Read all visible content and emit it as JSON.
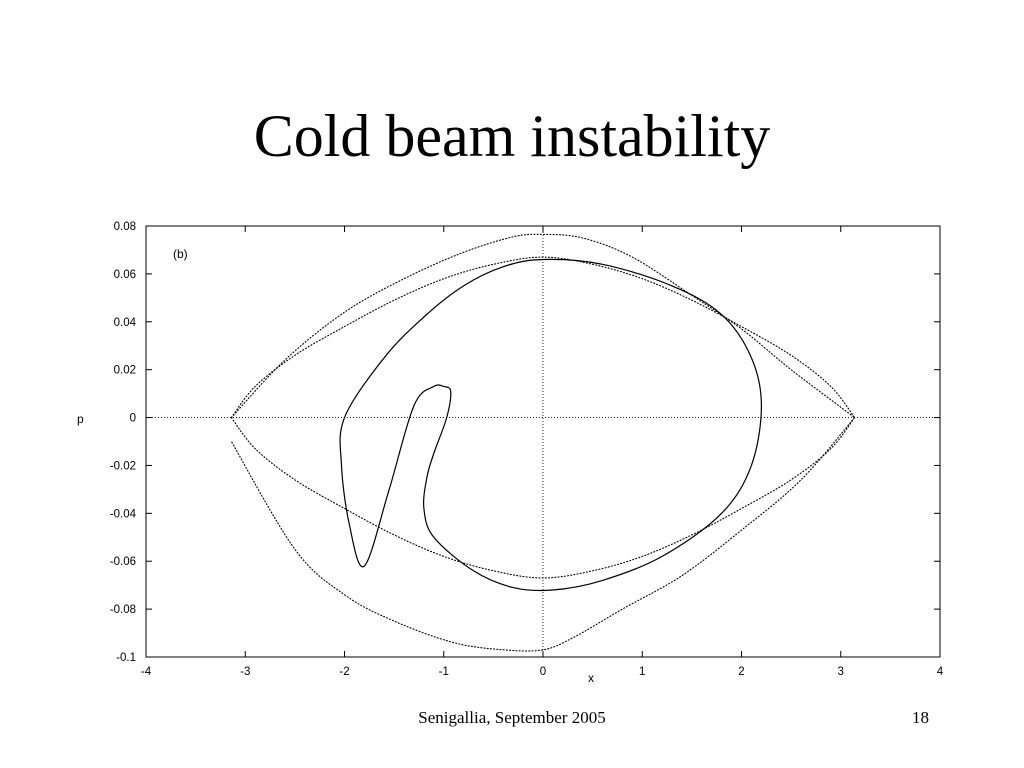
{
  "slide": {
    "title": "Cold beam instability",
    "footer_center": "Senigallia, September 2005",
    "page_number": "18"
  },
  "chart_data": {
    "type": "line",
    "annotation": "(b)",
    "xlabel": "x",
    "ylabel": "p",
    "xlim": [
      -4,
      4
    ],
    "ylim": [
      -0.1,
      0.08
    ],
    "x_ticks": [
      -4,
      -3,
      -2,
      -1,
      0,
      1,
      2,
      3,
      4
    ],
    "x_tick_labels": [
      "-4",
      "-3",
      "-2",
      "-1",
      "0",
      "1",
      "2",
      "3",
      "4"
    ],
    "y_ticks": [
      0.08,
      0.06,
      0.04,
      0.02,
      0,
      -0.02,
      -0.04,
      -0.06,
      -0.08,
      -0.1
    ],
    "y_tick_labels": [
      "0.08",
      "0.06",
      "0.04",
      "0.02",
      "0",
      "-0.02",
      "-0.04",
      "-0.06",
      "-0.08",
      "-0.1"
    ],
    "zero_lines": true,
    "series": [
      {
        "style": "dotted",
        "x": [
          -3.14,
          -2.6,
          -2.0,
          -1.4,
          -0.8,
          -0.3,
          0.0,
          0.4,
          0.9,
          1.5,
          2.0,
          2.5,
          3.14
        ],
        "y": [
          0.0,
          0.024,
          0.044,
          0.058,
          0.069,
          0.0755,
          0.0765,
          0.075,
          0.067,
          0.051,
          0.037,
          0.02,
          0.0
        ]
      },
      {
        "style": "dotted",
        "x": [
          3.14,
          2.6,
          2.0,
          1.4,
          0.8,
          0.3,
          0.0,
          -0.4,
          -0.9,
          -1.5,
          -2.0,
          -2.5,
          -3.14
        ],
        "y": [
          0.0,
          -0.026,
          -0.047,
          -0.066,
          -0.08,
          -0.092,
          -0.097,
          -0.097,
          -0.094,
          -0.085,
          -0.074,
          -0.055,
          -0.01
        ]
      },
      {
        "style": "dotted",
        "x": [
          -3.14,
          -2.9,
          -2.5,
          -2.0,
          -1.5,
          -1.0,
          -0.5,
          0.0,
          0.5,
          1.0,
          1.5,
          2.0,
          2.5,
          2.9,
          3.14
        ],
        "y": [
          0.0,
          0.013,
          0.026,
          0.038,
          0.049,
          0.058,
          0.064,
          0.067,
          0.064,
          0.058,
          0.049,
          0.038,
          0.026,
          0.013,
          0.0
        ]
      },
      {
        "style": "dotted",
        "x": [
          -3.14,
          -2.9,
          -2.5,
          -2.0,
          -1.5,
          -1.0,
          -0.5,
          0.0,
          0.5,
          1.0,
          1.5,
          2.0,
          2.5,
          2.9,
          3.14
        ],
        "y": [
          0.0,
          -0.013,
          -0.026,
          -0.038,
          -0.049,
          -0.058,
          -0.064,
          -0.067,
          -0.064,
          -0.058,
          -0.049,
          -0.038,
          -0.026,
          -0.013,
          0.0
        ]
      },
      {
        "style": "solid",
        "x": [
          -1.0,
          -0.93,
          -0.97,
          -1.1,
          -1.17,
          -1.2,
          -1.1,
          -0.7,
          -0.3,
          0.1,
          0.6,
          1.2,
          1.8,
          2.1,
          2.2,
          2.1,
          1.8,
          1.3,
          0.6,
          0.0,
          -0.4,
          -0.8,
          -1.2,
          -1.6,
          -2.0,
          -2.03,
          -1.95,
          -1.8,
          -1.55,
          -1.3,
          -1.1,
          -1.0
        ],
        "y": [
          0.013,
          0.011,
          0.0,
          -0.015,
          -0.025,
          -0.038,
          -0.05,
          -0.064,
          -0.071,
          -0.072,
          -0.068,
          -0.058,
          -0.04,
          -0.02,
          0.005,
          0.025,
          0.043,
          0.055,
          0.064,
          0.066,
          0.063,
          0.055,
          0.042,
          0.025,
          0.0,
          -0.02,
          -0.045,
          -0.062,
          -0.03,
          0.005,
          0.013,
          0.013
        ]
      }
    ]
  }
}
